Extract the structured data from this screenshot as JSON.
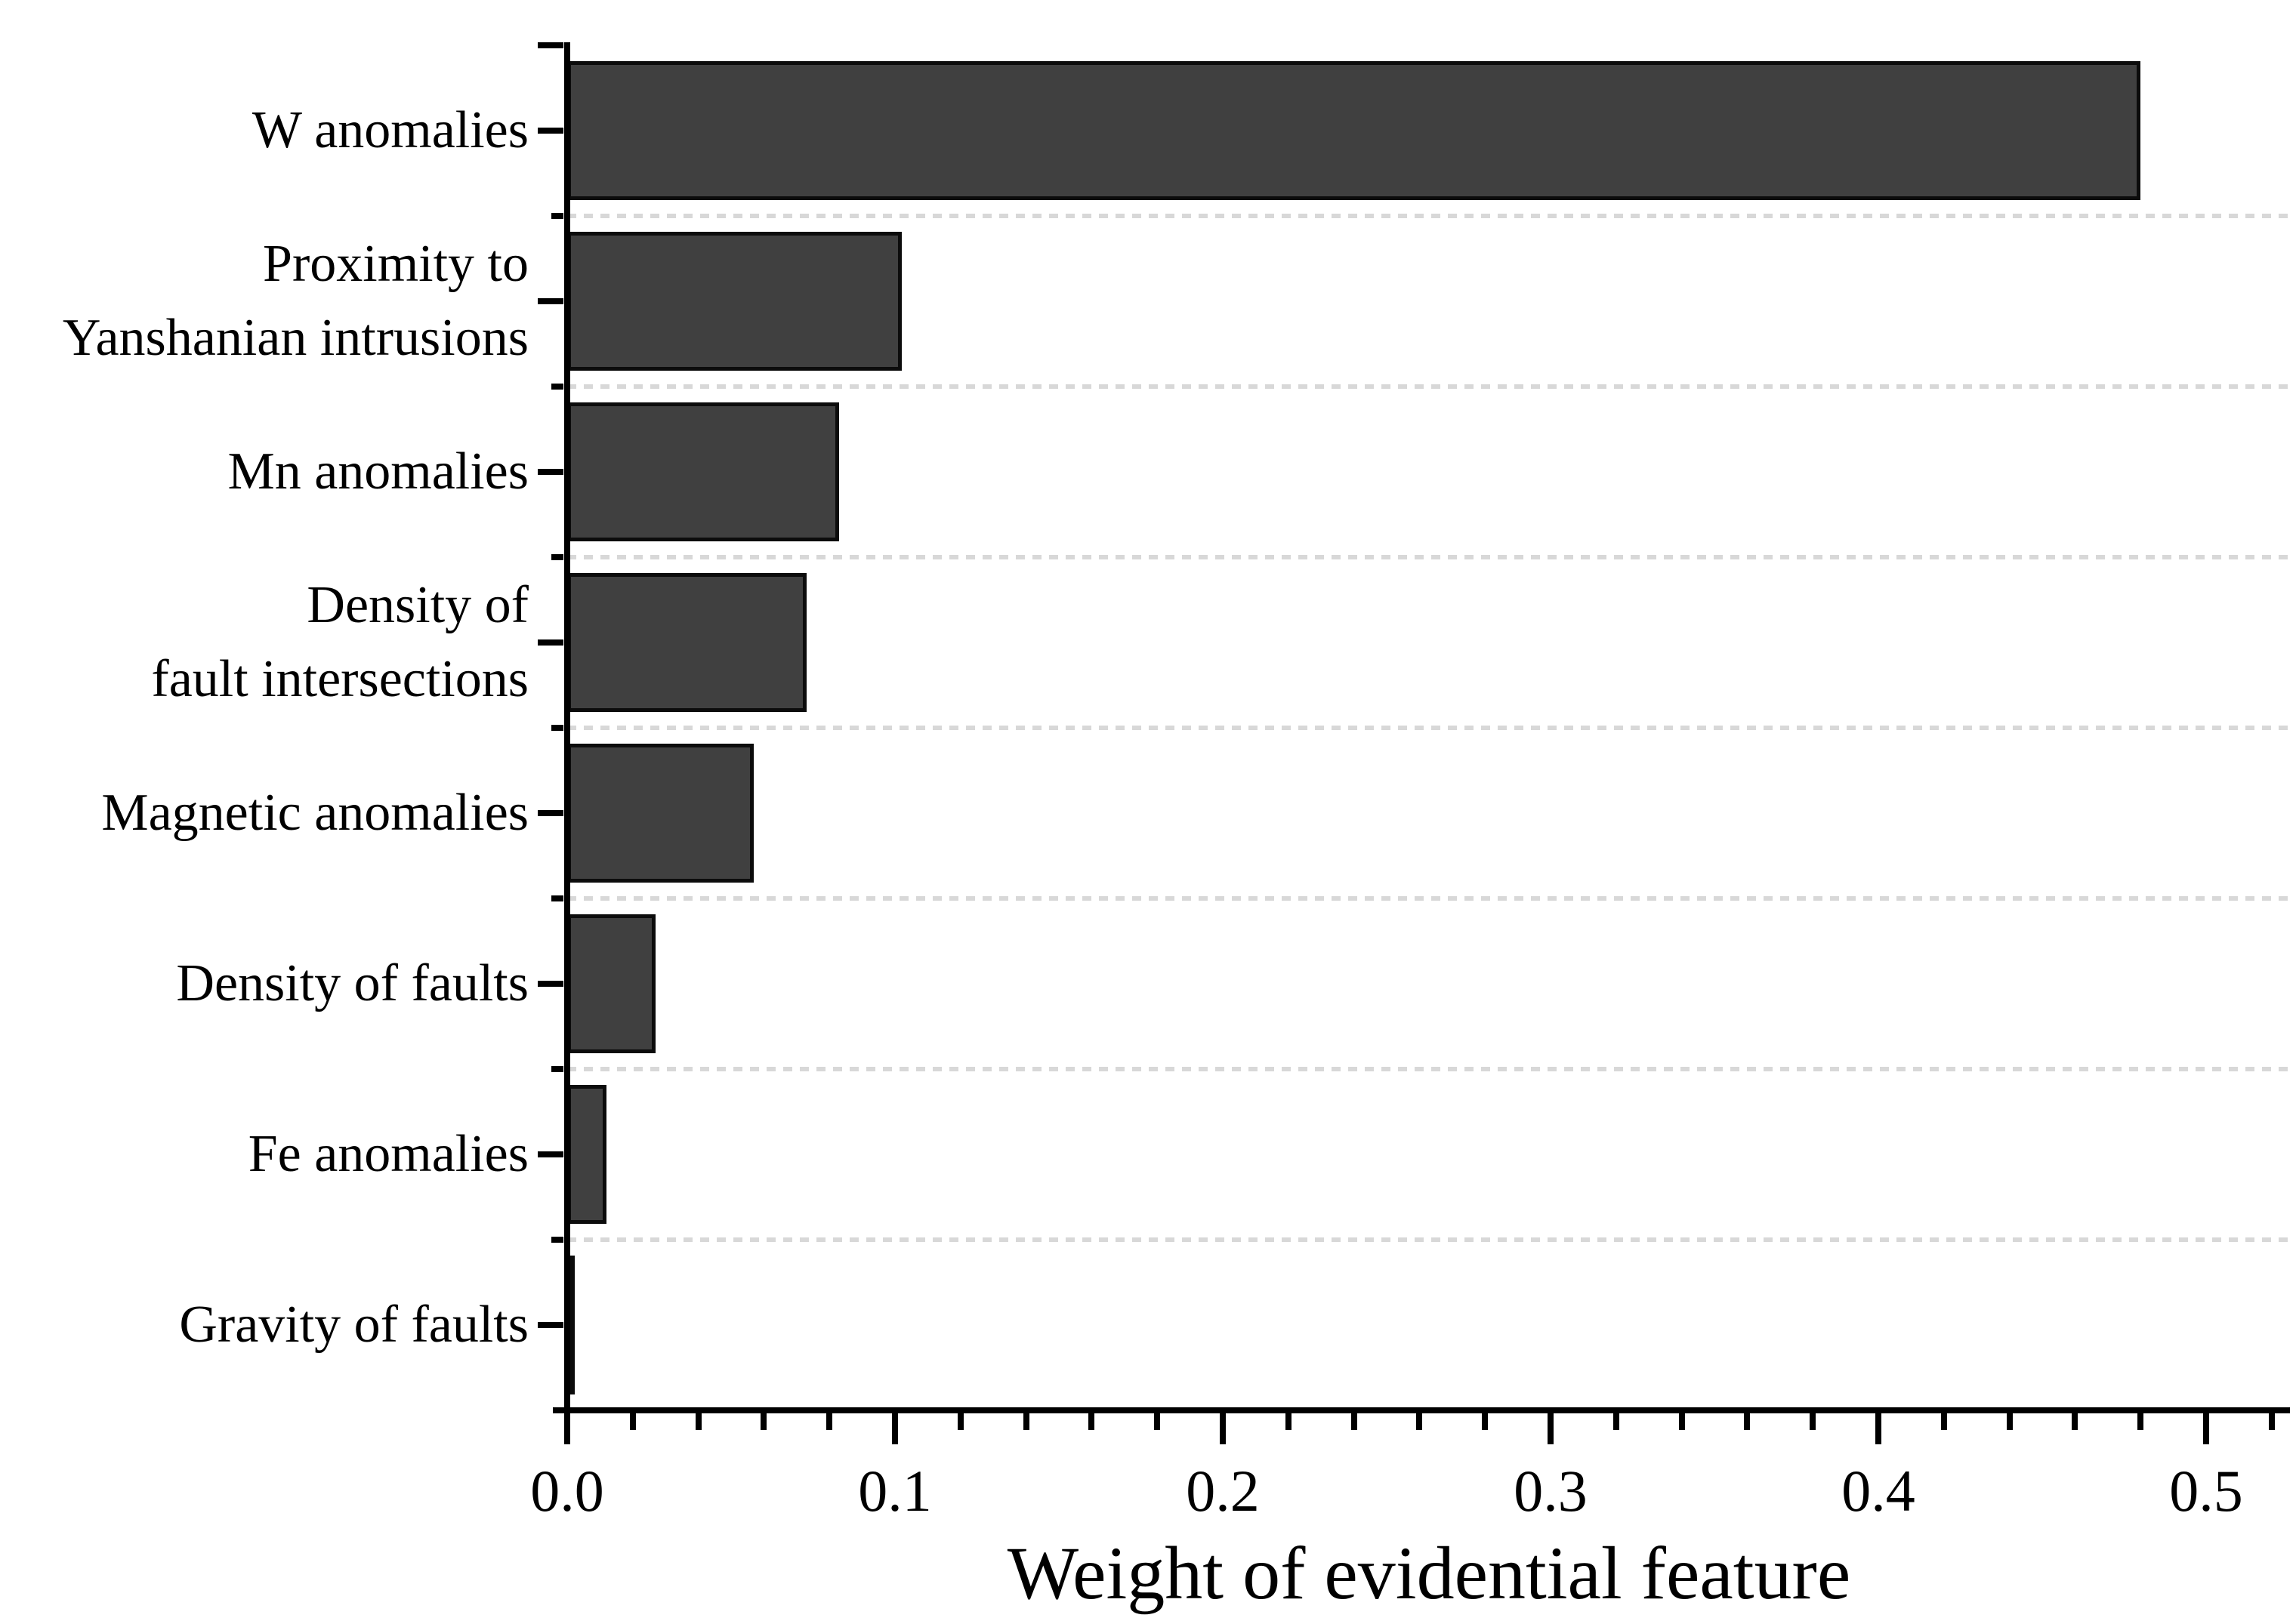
{
  "chart_data": {
    "type": "bar",
    "orientation": "horizontal",
    "title": "",
    "xlabel": "Weight of evidential feature",
    "ylabel": "",
    "xlim": [
      0.0,
      0.52
    ],
    "x_ticks": [
      0.0,
      0.1,
      0.2,
      0.3,
      0.4,
      0.5
    ],
    "x_tick_labels": [
      "0.0",
      "0.1",
      "0.2",
      "0.3",
      "0.4",
      "0.5"
    ],
    "x_minor_tick_step": 0.02,
    "legend": "none",
    "grid": "dashed horizontal separator lines between category bands",
    "categories": [
      "W anomalies",
      "Proximity to Yanshanian intrusions",
      "Mn anomalies",
      "Density of fault intersections",
      "Magnetic anomalies",
      "Density of faults",
      "Fe anomalies",
      "Gravity of faults"
    ],
    "category_label_lines": [
      [
        "W anomalies"
      ],
      [
        "Proximity to",
        "Yanshanian intrusions"
      ],
      [
        "Mn anomalies"
      ],
      [
        "Density of",
        "fault intersections"
      ],
      [
        "Magnetic anomalies"
      ],
      [
        "Density of faults"
      ],
      [
        "Fe anomalies"
      ],
      [
        "Gravity of faults"
      ]
    ],
    "values": [
      0.48,
      0.102,
      0.083,
      0.073,
      0.057,
      0.027,
      0.012,
      0.002
    ],
    "bar_color": "#404040",
    "bar_border_color": "#0c0c0c",
    "axis_color": "#000000",
    "gridline_color": "#d8d8d8",
    "background_color": "#ffffff"
  }
}
